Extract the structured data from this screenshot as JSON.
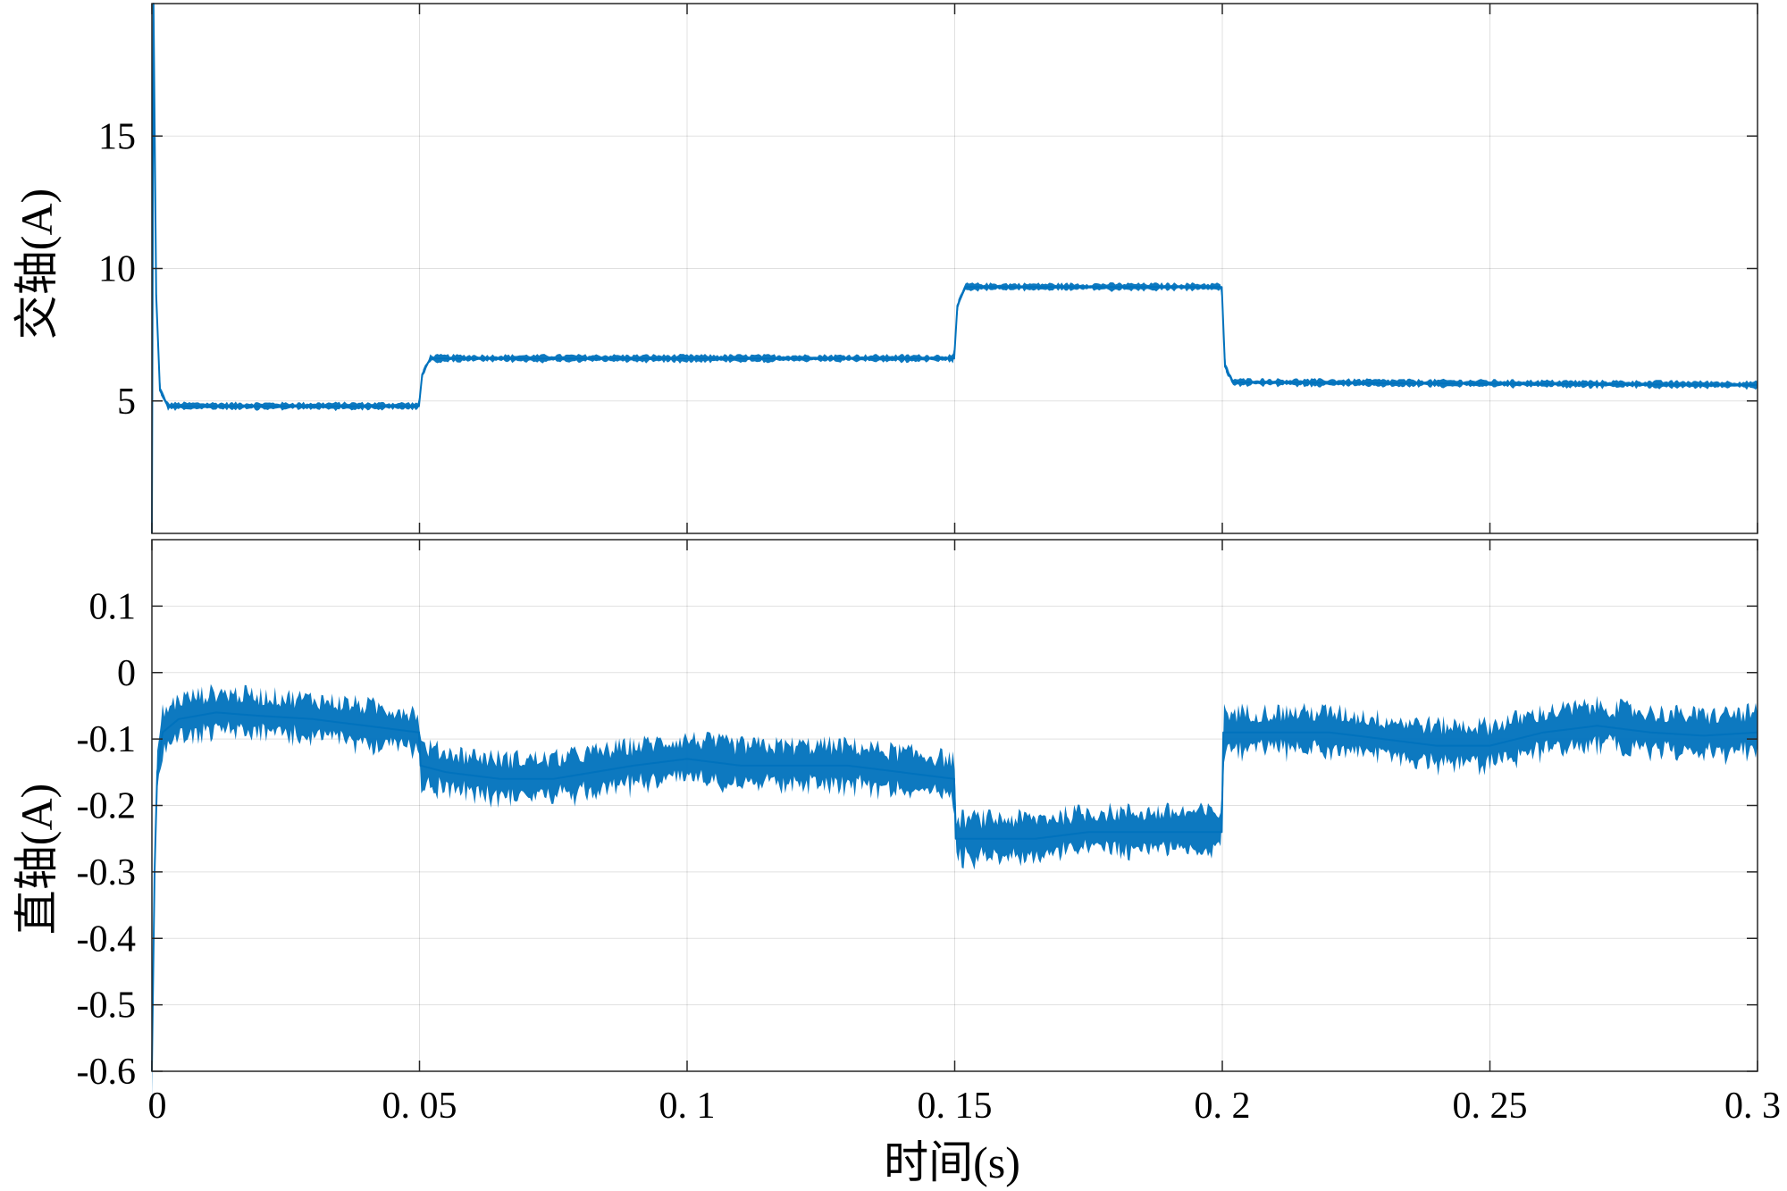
{
  "chart_data": [
    {
      "type": "line",
      "ylabel": "交轴(A)",
      "xlabel": "",
      "xlim": [
        0,
        0.3
      ],
      "ylim": [
        0,
        20
      ],
      "xticks": [
        0,
        0.05,
        0.1,
        0.15,
        0.2,
        0.25,
        0.3
      ],
      "yticks": [
        5,
        10,
        15
      ],
      "ytick_labels": [
        "5",
        "10",
        "15"
      ],
      "grid": true,
      "series": [
        {
          "color": "#0072bd",
          "x": [
            0,
            0.0003,
            0.0008,
            0.0015,
            0.003,
            0.0499,
            0.0505,
            0.052,
            0.1499,
            0.1505,
            0.152,
            0.1999,
            0.2005,
            0.202,
            0.3
          ],
          "values": [
            0,
            20,
            9,
            5.4,
            4.8,
            4.8,
            6.0,
            6.6,
            6.6,
            8.6,
            9.3,
            9.3,
            6.3,
            5.7,
            5.6
          ],
          "noise": 0.12
        }
      ]
    },
    {
      "type": "line",
      "ylabel": "直轴(A)",
      "xlabel": "时间(s)",
      "xlim": [
        0,
        0.3
      ],
      "ylim": [
        -0.6,
        0.2
      ],
      "xticks": [
        0,
        0.05,
        0.1,
        0.15,
        0.2,
        0.25,
        0.3
      ],
      "xtick_labels": [
        "0",
        "0. 05",
        "0. 1",
        "0. 15",
        "0. 2",
        "0. 25",
        "0. 3"
      ],
      "yticks": [
        -0.6,
        -0.5,
        -0.4,
        -0.3,
        -0.2,
        -0.1,
        0,
        0.1
      ],
      "ytick_labels": [
        "-0.6",
        "-0.5",
        "-0.4",
        "-0.3",
        "-0.2",
        "-0.1",
        "0",
        "0.1"
      ],
      "grid": true,
      "series": [
        {
          "color": "#0072bd",
          "x": [
            0,
            0.0005,
            0.001,
            0.002,
            0.005,
            0.012,
            0.02,
            0.03,
            0.04,
            0.0499,
            0.0502,
            0.055,
            0.065,
            0.075,
            0.09,
            0.1,
            0.11,
            0.12,
            0.13,
            0.14,
            0.1499,
            0.1502,
            0.158,
            0.165,
            0.175,
            0.185,
            0.1999,
            0.2002,
            0.21,
            0.22,
            0.23,
            0.24,
            0.25,
            0.26,
            0.27,
            0.28,
            0.29,
            0.3
          ],
          "values": [
            -0.6,
            -0.3,
            -0.15,
            -0.09,
            -0.07,
            -0.06,
            -0.065,
            -0.07,
            -0.08,
            -0.09,
            -0.14,
            -0.15,
            -0.16,
            -0.16,
            -0.14,
            -0.13,
            -0.14,
            -0.14,
            -0.14,
            -0.15,
            -0.16,
            -0.25,
            -0.25,
            -0.25,
            -0.24,
            -0.24,
            -0.24,
            -0.09,
            -0.09,
            -0.09,
            -0.1,
            -0.11,
            -0.11,
            -0.09,
            -0.08,
            -0.09,
            -0.095,
            -0.09
          ],
          "noise": 0.03
        }
      ]
    }
  ]
}
